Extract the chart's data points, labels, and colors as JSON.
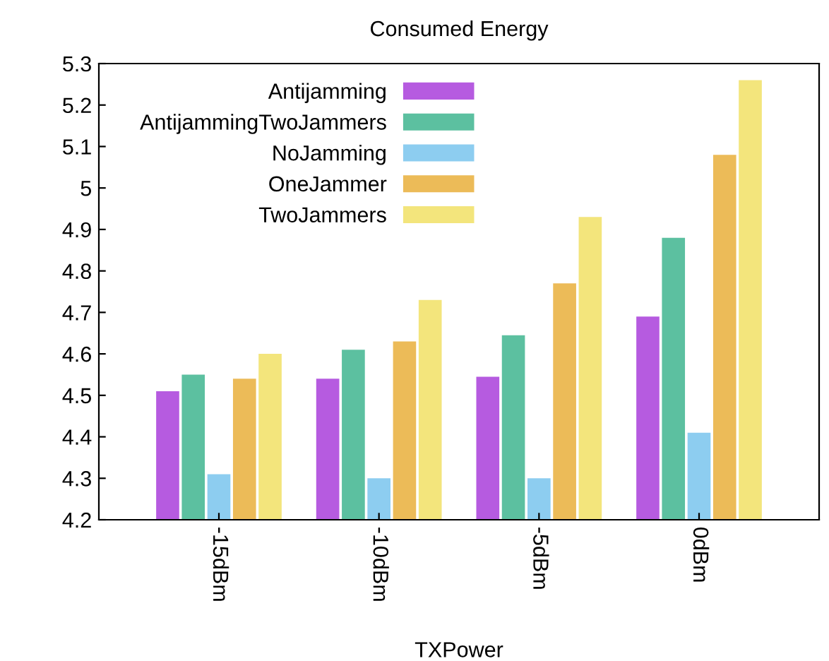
{
  "chart_data": {
    "type": "bar",
    "title": "Consumed Energy",
    "xlabel": "TXPower",
    "categories": [
      "-15dBm",
      "-10dBm",
      "-5dBm",
      "0dBm"
    ],
    "series": [
      {
        "name": "Antijamming",
        "color": "#b65be0",
        "values": [
          4.51,
          4.54,
          4.545,
          4.69
        ]
      },
      {
        "name": "AntijammingTwoJammers",
        "color": "#5cc0a0",
        "values": [
          4.55,
          4.61,
          4.645,
          4.88
        ]
      },
      {
        "name": "NoJamming",
        "color": "#8dcdf0",
        "values": [
          4.31,
          4.3,
          4.3,
          4.41
        ]
      },
      {
        "name": "OneJammer",
        "color": "#ecbb58",
        "values": [
          4.54,
          4.63,
          4.77,
          5.08
        ]
      },
      {
        "name": "TwoJammers",
        "color": "#f3e57c",
        "values": [
          4.6,
          4.73,
          4.93,
          5.26
        ]
      }
    ],
    "ylim": [
      4.2,
      5.3
    ],
    "yticks": [
      {
        "value": 4.2,
        "label": "4.2"
      },
      {
        "value": 4.3,
        "label": "4.3"
      },
      {
        "value": 4.4,
        "label": "4.4"
      },
      {
        "value": 4.5,
        "label": "4.5"
      },
      {
        "value": 4.6,
        "label": "4.6"
      },
      {
        "value": 4.7,
        "label": "4.7"
      },
      {
        "value": 4.8,
        "label": "4.8"
      },
      {
        "value": 4.9,
        "label": "4.9"
      },
      {
        "value": 5,
        "label": "5"
      },
      {
        "value": 5.1,
        "label": "5.1"
      },
      {
        "value": 5.2,
        "label": "5.2"
      },
      {
        "value": 5.3,
        "label": "5.3"
      }
    ],
    "legend": "top left",
    "grid": false
  }
}
